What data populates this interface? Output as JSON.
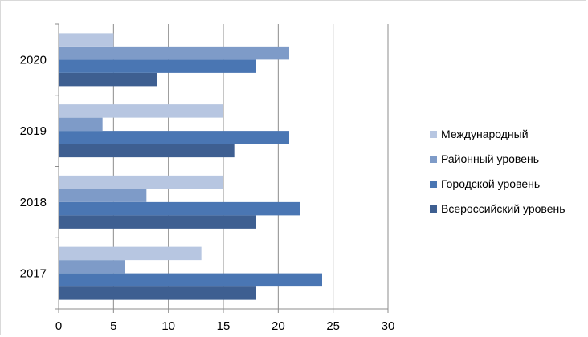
{
  "chart_data": {
    "type": "bar",
    "orientation": "horizontal",
    "categories": [
      "2017",
      "2018",
      "2019",
      "2020"
    ],
    "series": [
      {
        "name": "Всероссийский уровень",
        "values": [
          18,
          18,
          16,
          9
        ],
        "color": "#3e5f91"
      },
      {
        "name": "Городской уровень",
        "values": [
          24,
          22,
          21,
          18
        ],
        "color": "#4a76b3"
      },
      {
        "name": "Районный уровень",
        "values": [
          6,
          8,
          4,
          21
        ],
        "color": "#7e9bc8"
      },
      {
        "name": "Международный",
        "values": [
          13,
          15,
          15,
          5
        ],
        "color": "#b7c6e1"
      }
    ],
    "xlim": [
      0,
      30
    ],
    "xticks": [
      0,
      5,
      10,
      15,
      20,
      25,
      30
    ],
    "grid": "vertical",
    "legend": "right",
    "title": "",
    "xlabel": "",
    "ylabel": ""
  }
}
